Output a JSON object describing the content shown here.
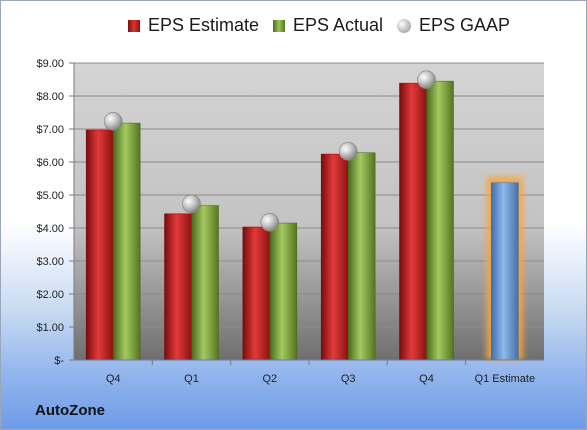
{
  "chart_data": {
    "type": "bar",
    "categories": [
      "Q4",
      "Q1",
      "Q2",
      "Q3",
      "Q4",
      "Q1 Estimate"
    ],
    "series": [
      {
        "name": "EPS Estimate",
        "values": [
          6.97,
          4.43,
          4.03,
          6.24,
          8.39,
          null
        ],
        "color": "#c62b2b"
      },
      {
        "name": "EPS Actual",
        "values": [
          7.18,
          4.68,
          4.15,
          6.28,
          8.45,
          null
        ],
        "color": "#86ad45"
      },
      {
        "name": "EPS GAAP",
        "values": [
          7.23,
          4.73,
          4.17,
          6.32,
          8.49,
          null
        ],
        "color": "#b0b0b0"
      }
    ],
    "forecast": {
      "category": "Q1 Estimate",
      "value": 5.37,
      "color": "#6f9fdc"
    },
    "ylim": [
      0,
      9
    ],
    "yticks": [
      0,
      1,
      2,
      3,
      4,
      5,
      6,
      7,
      8,
      9
    ],
    "ytick_labels": [
      "$-",
      "$1.00",
      "$2.00",
      "$3.00",
      "$4.00",
      "$5.00",
      "$6.00",
      "$7.00",
      "$8.00",
      "$9.00"
    ],
    "legend_position": "top",
    "grid": true
  },
  "legend": {
    "estimate": "EPS Estimate",
    "actual": "EPS Actual",
    "gaap": "EPS GAAP"
  },
  "company": "AutoZone"
}
